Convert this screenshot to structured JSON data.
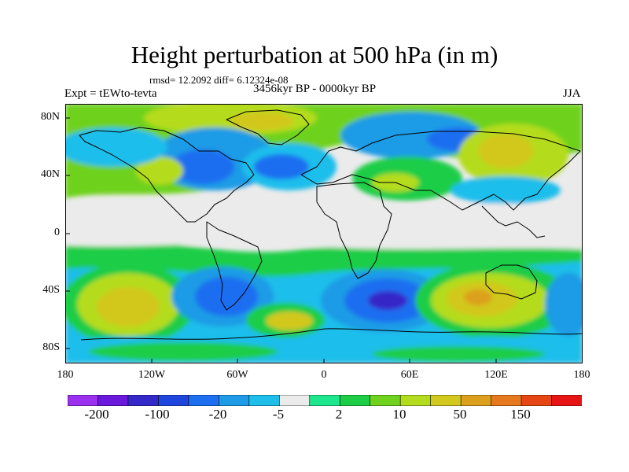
{
  "title": "Height perturbation at 500 hPa (in m)",
  "stats": "rmsd= 12.2092 diff= 6.12324e-08",
  "expt": "Expt = tEWto-tevta",
  "period": "3456kyr BP - 0000kyr BP",
  "season": "JJA",
  "lat_labels": [
    "80N",
    "40N",
    "0",
    "40S",
    "80S"
  ],
  "lon_labels": [
    "180",
    "120W",
    "60W",
    "0",
    "60E",
    "120E",
    "180"
  ],
  "colorbar": {
    "colors": [
      "#9b30f0",
      "#6a18dc",
      "#3428c8",
      "#1e46dc",
      "#1e6ef0",
      "#1e9be6",
      "#1ebeeb",
      "#ebebeb",
      "#1ee68c",
      "#1ecd46",
      "#6ed21e",
      "#b4dc1e",
      "#d2c81e",
      "#dca01e",
      "#e6781e",
      "#e64614",
      "#e61414"
    ],
    "labels": [
      "-200",
      "-100",
      "-20",
      "-5",
      "2",
      "10",
      "50",
      "150"
    ]
  }
}
